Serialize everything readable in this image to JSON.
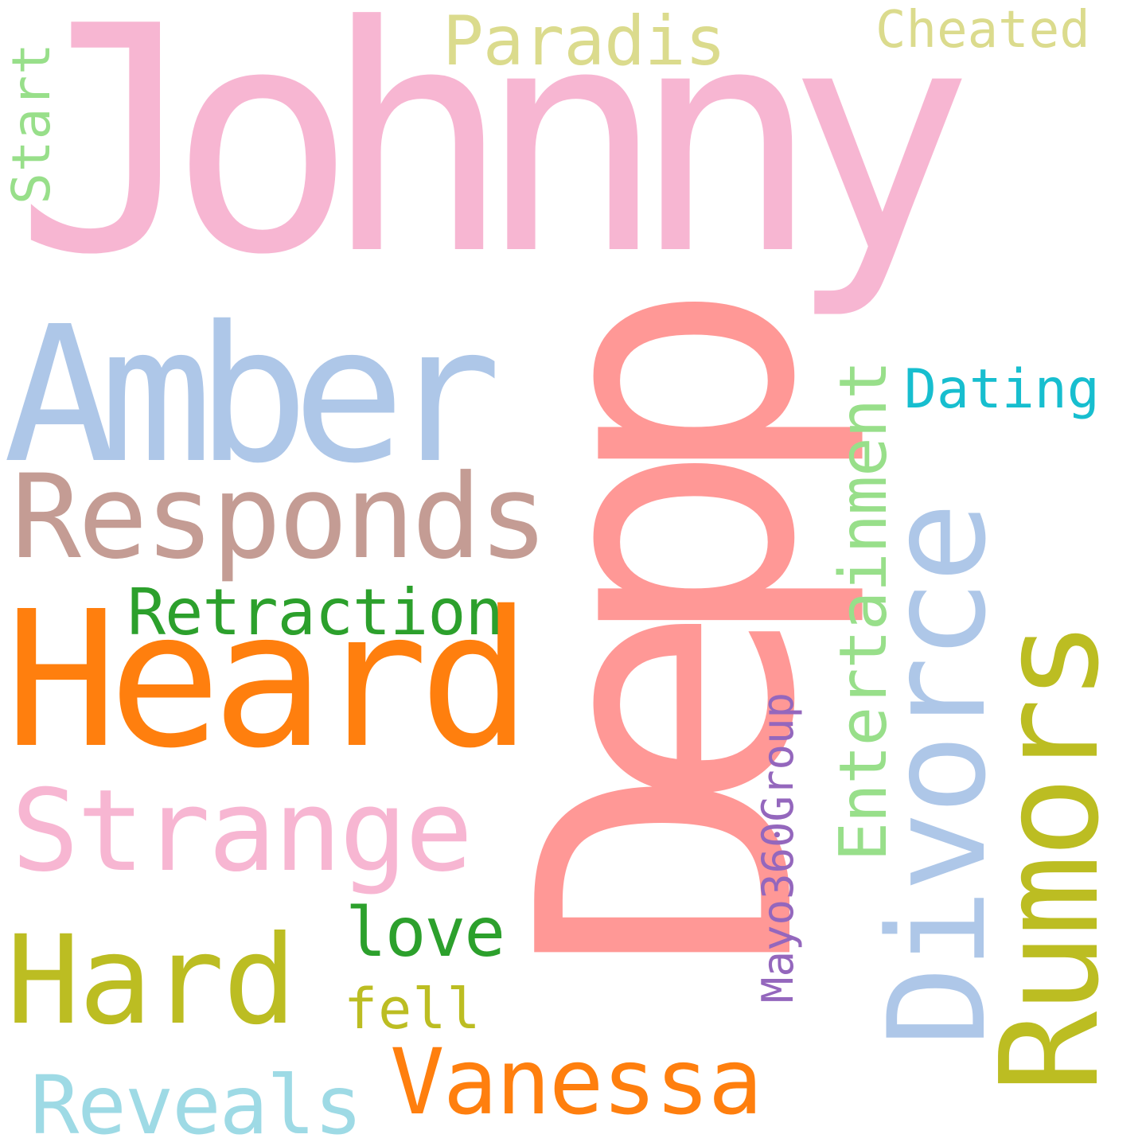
{
  "words": [
    {
      "text": "Johnny",
      "color": "#f7b6d2"
    },
    {
      "text": "Depp",
      "color": "#ff9896"
    },
    {
      "text": "Amber",
      "color": "#aec7e8"
    },
    {
      "text": "Heard",
      "color": "#ff7f0e"
    },
    {
      "text": "Responds",
      "color": "#c49c94"
    },
    {
      "text": "Divorce",
      "color": "#aec7e8"
    },
    {
      "text": "Rumors",
      "color": "#bcbd22"
    },
    {
      "text": "Strange",
      "color": "#f7b6d2"
    },
    {
      "text": "Hard",
      "color": "#bcbd22"
    },
    {
      "text": "Entertainment",
      "color": "#98df8a"
    },
    {
      "text": "Paradis",
      "color": "#dbdb8d"
    },
    {
      "text": "Cheated",
      "color": "#dbdb8d"
    },
    {
      "text": "Start",
      "color": "#98df8a"
    },
    {
      "text": "Dating",
      "color": "#17becf"
    },
    {
      "text": "Retraction",
      "color": "#2ca02c"
    },
    {
      "text": "Mayo360Group",
      "color": "#9467bd"
    },
    {
      "text": "love",
      "color": "#2ca02c"
    },
    {
      "text": "fell",
      "color": "#bcbd22"
    },
    {
      "text": "Vanessa",
      "color": "#ff7f0e"
    },
    {
      "text": "Reveals",
      "color": "#9edae5"
    }
  ]
}
